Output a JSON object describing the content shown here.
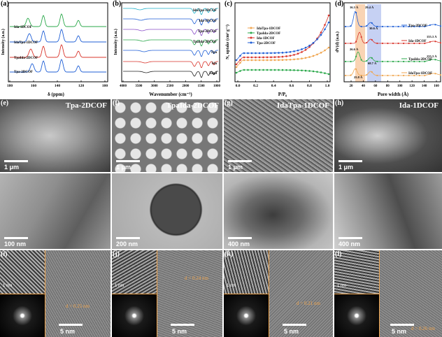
{
  "panels": {
    "a": {
      "label": "(a)",
      "xlabel": "δ (ppm)",
      "ylabel": "Intensity (a.u.)",
      "xticks": [
        "180",
        "160",
        "140",
        "120",
        "100"
      ],
      "series": [
        "Ida-1DCOF",
        "IdaTpa-1DCOF",
        "TpaIda-2DCOF",
        "Tpa-2DCOF"
      ]
    },
    "b": {
      "label": "(b)",
      "xlabel": "Wavenumber (cm⁻¹)",
      "ylabel": "Intensity (a.u.)",
      "xticks": [
        "4000",
        "3500",
        "3000",
        "2500",
        "2000",
        "1500",
        "1000"
      ],
      "series": [
        "IdaTpa-1DCOF",
        "Ida-1DCOF",
        "Tpa-2DCOF",
        "TpaIda-2DCOF",
        "Tpa",
        "Ida",
        "Tapd"
      ]
    },
    "c": {
      "label": "(c)",
      "xlabel": "P/P₀",
      "ylabel": "N₂ uptake (cm³ g⁻¹)",
      "xticks": [
        "0.0",
        "0.2",
        "0.4",
        "0.6",
        "0.8",
        "1.0"
      ],
      "series": [
        "IdaTpa-1DCOF",
        "TpaIda-2DCOF",
        "Ida-1DCOF",
        "Tpa-2DCOF"
      ]
    },
    "d": {
      "label": "(d)",
      "xlabel": "Pore width (Å)",
      "ylabel": "dV(d) (a.u.)",
      "xticks": [
        "20",
        "40",
        "60",
        "80",
        "100",
        "120",
        "140",
        "160"
      ],
      "series": [
        "Tpa-2DCOF",
        "Ida-1DCOF",
        "TpaIda-2DCOF",
        "IdaTpa-1DCOF"
      ],
      "annotations": [
        "16.3 Å",
        "29.4 Å",
        "30.6 Å",
        "155.3 Å",
        "26.6 Å",
        "155.3 Å",
        "68.7 Å",
        "25.8 Å"
      ]
    }
  },
  "sem": [
    {
      "label": "(e)",
      "title": "Tpa-2DCOF",
      "scale": "1 μm"
    },
    {
      "label": "(f)",
      "title": "TpaIda-2DCOF",
      "scale": "1 μm"
    },
    {
      "label": "(g)",
      "title": "IdaTpa-1DCOF",
      "scale": "1 μm"
    },
    {
      "label": "(h)",
      "title": "Ida-1DCOF",
      "scale": "1 μm"
    }
  ],
  "tem": [
    {
      "scale": "100 nm"
    },
    {
      "scale": "200 nm"
    },
    {
      "scale": "400 nm"
    },
    {
      "scale": "400 nm"
    }
  ],
  "hrtem": [
    {
      "label": "(i)",
      "dspacing": "d = 0.25 nm",
      "scale": "5 nm",
      "inset_scale": "1 nm"
    },
    {
      "label": "(j)",
      "dspacing": "d = 0.24 nm",
      "scale": "5 nm",
      "inset_scale": "1 nm"
    },
    {
      "label": "(k)",
      "dspacing": "d = 0.21 nm",
      "scale": "5 nm",
      "inset_scale": "1 nm"
    },
    {
      "label": "(l)",
      "dspacing": "d = 0.26 nm",
      "scale": "5 nm",
      "inset_scale": "1 nm"
    }
  ],
  "colors": {
    "green": "#2aa84a",
    "blue": "#1f5fd6",
    "red": "#d9342b",
    "orange": "#f0a650",
    "purple": "#8a4fc9",
    "cyan": "#1fb0c9",
    "gray": "#666666",
    "black": "#222222"
  }
}
